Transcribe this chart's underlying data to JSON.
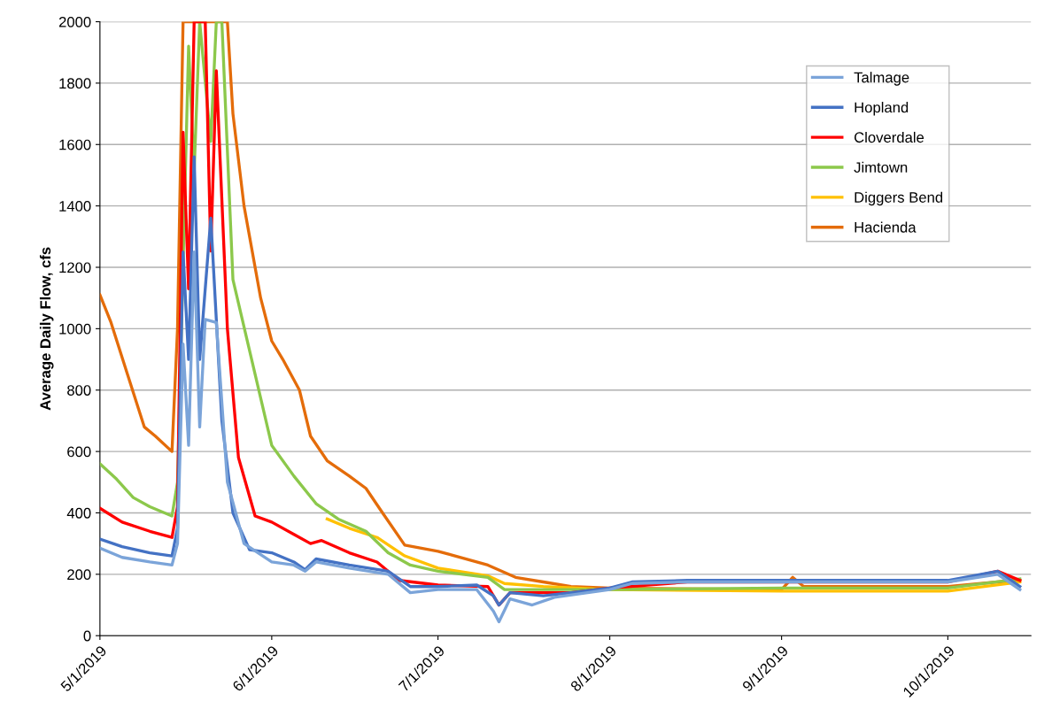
{
  "chart_data": {
    "type": "line",
    "ylabel": "Average Daily Flow, cfs",
    "ylim": [
      0,
      2000
    ],
    "yticks": [
      0,
      200,
      400,
      600,
      800,
      1000,
      1200,
      1400,
      1600,
      1800,
      2000
    ],
    "xlim": [
      "2019-05-01",
      "2019-10-16"
    ],
    "xticks": [
      {
        "value": "2019-05-01",
        "label": "5/1/2019"
      },
      {
        "value": "2019-06-01",
        "label": "6/1/2019"
      },
      {
        "value": "2019-07-01",
        "label": "7/1/2019"
      },
      {
        "value": "2019-08-01",
        "label": "8/1/2019"
      },
      {
        "value": "2019-09-01",
        "label": "9/1/2019"
      },
      {
        "value": "2019-10-01",
        "label": "10/1/2019"
      }
    ],
    "grid": "y",
    "legend": "top right",
    "marker": "none",
    "line_style": "solid",
    "series": [
      {
        "name": "Talmage",
        "color": "#7ba4d9",
        "x": [
          "2019-05-01",
          "2019-05-05",
          "2019-05-10",
          "2019-05-14",
          "2019-05-15",
          "2019-05-16",
          "2019-05-17",
          "2019-05-18",
          "2019-05-19",
          "2019-05-20",
          "2019-05-22",
          "2019-05-24",
          "2019-05-27",
          "2019-06-01",
          "2019-06-05",
          "2019-06-07",
          "2019-06-09",
          "2019-06-15",
          "2019-06-22",
          "2019-06-26",
          "2019-07-01",
          "2019-07-08",
          "2019-07-11",
          "2019-07-12",
          "2019-07-14",
          "2019-07-16",
          "2019-07-18",
          "2019-07-22",
          "2019-07-26",
          "2019-08-01",
          "2019-08-05",
          "2019-08-15",
          "2019-09-01",
          "2019-10-01",
          "2019-10-10",
          "2019-10-14"
        ],
        "values": [
          285,
          255,
          240,
          230,
          300,
          950,
          620,
          1250,
          680,
          1030,
          1020,
          500,
          300,
          240,
          230,
          210,
          240,
          220,
          200,
          140,
          150,
          150,
          80,
          45,
          120,
          110,
          100,
          125,
          135,
          150,
          170,
          175,
          175,
          175,
          200,
          150
        ]
      },
      {
        "name": "Hopland",
        "color": "#4472c4",
        "x": [
          "2019-05-01",
          "2019-05-05",
          "2019-05-10",
          "2019-05-14",
          "2019-05-15",
          "2019-05-16",
          "2019-05-17",
          "2019-05-18",
          "2019-05-19",
          "2019-05-21",
          "2019-05-23",
          "2019-05-25",
          "2019-05-28",
          "2019-06-01",
          "2019-06-05",
          "2019-06-07",
          "2019-06-09",
          "2019-06-15",
          "2019-06-22",
          "2019-06-26",
          "2019-07-01",
          "2019-07-08",
          "2019-07-11",
          "2019-07-12",
          "2019-07-14",
          "2019-07-20",
          "2019-07-25",
          "2019-08-01",
          "2019-08-05",
          "2019-08-15",
          "2019-09-01",
          "2019-10-01",
          "2019-10-10",
          "2019-10-14"
        ],
        "values": [
          315,
          290,
          270,
          260,
          350,
          1250,
          900,
          1560,
          900,
          1360,
          700,
          400,
          280,
          270,
          240,
          215,
          250,
          230,
          210,
          160,
          160,
          165,
          130,
          100,
          140,
          130,
          140,
          155,
          175,
          180,
          180,
          180,
          210,
          160
        ]
      },
      {
        "name": "Cloverdale",
        "color": "#ff0000",
        "x": [
          "2019-05-01",
          "2019-05-05",
          "2019-05-10",
          "2019-05-14",
          "2019-05-15",
          "2019-05-16",
          "2019-05-17",
          "2019-05-18",
          "2019-05-20",
          "2019-05-21",
          "2019-05-22",
          "2019-05-24",
          "2019-05-26",
          "2019-05-29",
          "2019-06-01",
          "2019-06-05",
          "2019-06-08",
          "2019-06-10",
          "2019-06-15",
          "2019-06-20",
          "2019-06-24",
          "2019-07-01",
          "2019-07-10",
          "2019-07-12",
          "2019-07-14",
          "2019-07-20",
          "2019-07-25",
          "2019-08-01",
          "2019-08-15",
          "2019-09-01",
          "2019-10-01",
          "2019-10-10",
          "2019-10-14"
        ],
        "values": [
          415,
          370,
          340,
          320,
          420,
          1640,
          1130,
          2000,
          2000,
          1253,
          1840,
          1000,
          580,
          390,
          370,
          330,
          300,
          310,
          270,
          240,
          180,
          165,
          160,
          100,
          140,
          140,
          140,
          155,
          175,
          175,
          175,
          210,
          180
        ]
      },
      {
        "name": "Jimtown",
        "color": "#8cc84b",
        "x": [
          "2019-05-01",
          "2019-05-04",
          "2019-05-07",
          "2019-05-10",
          "2019-05-14",
          "2019-05-15",
          "2019-05-17",
          "2019-05-18",
          "2019-05-19",
          "2019-05-21",
          "2019-05-22",
          "2019-05-23",
          "2019-05-25",
          "2019-06-01",
          "2019-06-05",
          "2019-06-09",
          "2019-06-13",
          "2019-06-18",
          "2019-06-22",
          "2019-06-26",
          "2019-07-01",
          "2019-07-10",
          "2019-07-13",
          "2019-07-20",
          "2019-08-01",
          "2019-09-01",
          "2019-10-01",
          "2019-10-14"
        ],
        "values": [
          560,
          510,
          450,
          420,
          390,
          500,
          1920,
          1510,
          2000,
          1610,
          2000,
          2000,
          1160,
          620,
          520,
          430,
          380,
          340,
          270,
          230,
          210,
          190,
          150,
          150,
          150,
          155,
          155,
          185
        ]
      },
      {
        "name": "Diggers Bend",
        "color": "#ffc000",
        "x": [
          "2019-06-11",
          "2019-06-15",
          "2019-06-20",
          "2019-06-25",
          "2019-07-01",
          "2019-07-10",
          "2019-07-13",
          "2019-07-20",
          "2019-08-01",
          "2019-09-01",
          "2019-10-01",
          "2019-10-14"
        ],
        "values": [
          380,
          350,
          320,
          260,
          220,
          195,
          170,
          160,
          150,
          145,
          145,
          175
        ]
      },
      {
        "name": "Hacienda",
        "color": "#e46c0a",
        "x": [
          "2019-05-01",
          "2019-05-03",
          "2019-05-06",
          "2019-05-09",
          "2019-05-11",
          "2019-05-14",
          "2019-05-15",
          "2019-05-16",
          "2019-05-24",
          "2019-05-25",
          "2019-05-27",
          "2019-05-30",
          "2019-06-01",
          "2019-06-03",
          "2019-06-06",
          "2019-06-08",
          "2019-06-11",
          "2019-06-15",
          "2019-06-18",
          "2019-06-21",
          "2019-06-25",
          "2019-07-01",
          "2019-07-10",
          "2019-07-15",
          "2019-07-20",
          "2019-07-25",
          "2019-08-01",
          "2019-09-01",
          "2019-09-03",
          "2019-09-05",
          "2019-10-01",
          "2019-10-10",
          "2019-10-14"
        ],
        "values": [
          1110,
          1020,
          850,
          680,
          650,
          600,
          1000,
          2000,
          2000,
          1700,
          1400,
          1100,
          960,
          900,
          800,
          650,
          570,
          520,
          480,
          400,
          295,
          275,
          230,
          190,
          175,
          160,
          155,
          150,
          190,
          160,
          160,
          175,
          180
        ]
      }
    ]
  }
}
